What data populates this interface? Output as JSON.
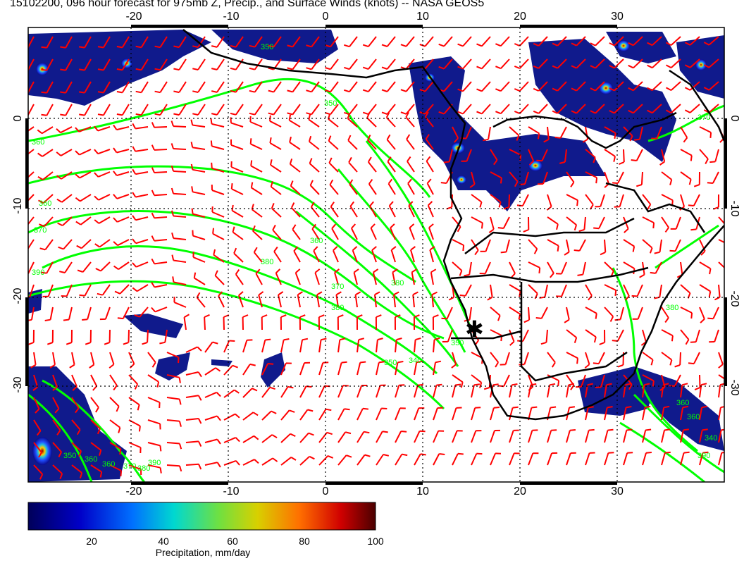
{
  "title": "15102200, 096 hour forecast for 975mb Z, Precip., and Surface Winds (knots) -- NASA GEOS5",
  "map": {
    "lon_ticks": [
      "-20",
      "-10",
      "0",
      "10",
      "20",
      "30"
    ],
    "lat_ticks": [
      "0",
      "-10",
      "-20",
      "-30"
    ],
    "contour_labels": [
      "360",
      "360",
      "370",
      "360",
      "380",
      "390",
      "370",
      "380",
      "380",
      "350",
      "340",
      "350",
      "360",
      "370",
      "380",
      "390",
      "350",
      "360",
      "370",
      "380",
      "360",
      "390",
      "360",
      "350",
      "350",
      "340"
    ],
    "marker": "✱"
  },
  "colorbar": {
    "label": "Precipitation, mm/day",
    "ticks": [
      "20",
      "40",
      "60",
      "80",
      "100"
    ]
  },
  "colors": {
    "wind_barbs": "#ff0000",
    "contours": "#00ff00",
    "coastline": "#000000",
    "precip_low": "#00008b",
    "precip_high": "#5a0000"
  },
  "icons": {
    "location_marker": "asterisk-star-icon"
  }
}
